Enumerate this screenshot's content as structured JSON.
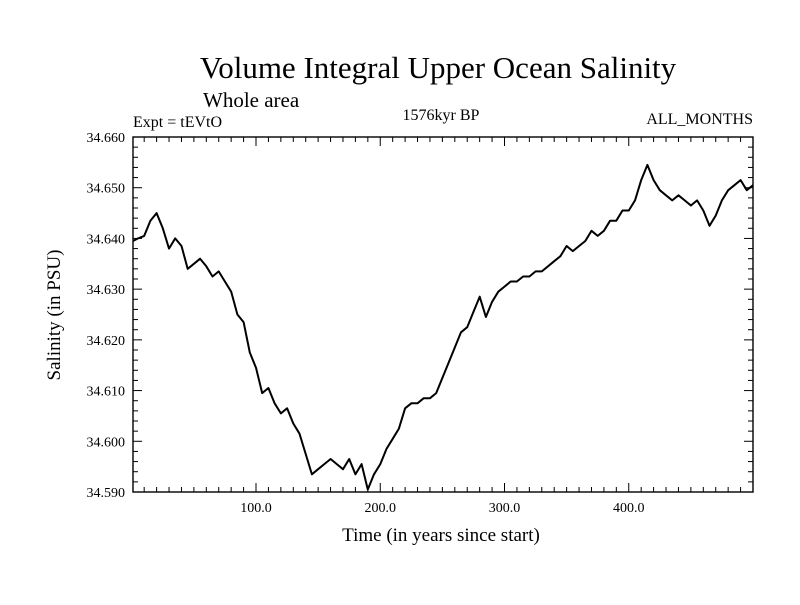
{
  "chart_data": {
    "type": "line",
    "title": "Volume Integral Upper Ocean Salinity",
    "subtitle": "Whole area",
    "header_left": "Expt = tEVtO",
    "header_center": "1576kyr BP",
    "header_right": "ALL_MONTHS",
    "xlabel": "Time (in years since start)",
    "ylabel": "Salinity (in PSU)",
    "xlim": [
      1,
      500
    ],
    "ylim": [
      34.59,
      34.66
    ],
    "x_ticks": [
      100,
      200,
      300,
      400
    ],
    "x_tick_labels": [
      "100.0",
      "200.0",
      "300.0",
      "400.0"
    ],
    "y_ticks": [
      34.59,
      34.6,
      34.61,
      34.62,
      34.63,
      34.64,
      34.65,
      34.66
    ],
    "y_tick_labels": [
      "34.590",
      "34.600",
      "34.610",
      "34.620",
      "34.630",
      "34.640",
      "34.650",
      "34.660"
    ],
    "grid": false,
    "line_color": "#000000",
    "series": [
      {
        "name": "Salinity",
        "x": [
          1,
          5,
          10,
          15,
          20,
          25,
          30,
          35,
          40,
          45,
          50,
          55,
          60,
          65,
          70,
          75,
          80,
          85,
          90,
          95,
          100,
          105,
          110,
          115,
          120,
          125,
          130,
          135,
          140,
          145,
          150,
          155,
          160,
          165,
          170,
          175,
          180,
          185,
          190,
          195,
          200,
          205,
          210,
          215,
          220,
          225,
          230,
          235,
          240,
          245,
          250,
          255,
          260,
          265,
          270,
          275,
          280,
          285,
          290,
          295,
          300,
          305,
          310,
          315,
          320,
          325,
          330,
          335,
          340,
          345,
          350,
          355,
          360,
          365,
          370,
          375,
          380,
          385,
          390,
          395,
          400,
          405,
          410,
          415,
          420,
          425,
          430,
          435,
          440,
          445,
          450,
          455,
          460,
          465,
          470,
          475,
          480,
          485,
          490,
          495,
          500
        ],
        "values": [
          34.6395,
          34.64,
          34.6405,
          34.6435,
          34.645,
          34.642,
          34.638,
          34.64,
          34.6385,
          34.634,
          34.635,
          34.636,
          34.6345,
          34.6325,
          34.6335,
          34.6315,
          34.6295,
          34.625,
          34.6235,
          34.6175,
          34.6145,
          34.6095,
          34.6105,
          34.6075,
          34.6055,
          34.6065,
          34.6035,
          34.6015,
          34.5975,
          34.5935,
          34.5945,
          34.5955,
          34.5965,
          34.5955,
          34.5945,
          34.5965,
          34.5935,
          34.5955,
          34.5905,
          34.5935,
          34.5955,
          34.5985,
          34.6005,
          34.6025,
          34.6065,
          34.6075,
          34.6075,
          34.6085,
          34.6085,
          34.6095,
          34.6125,
          34.6155,
          34.6185,
          34.6215,
          34.6225,
          34.6255,
          34.6285,
          34.6245,
          34.6275,
          34.6295,
          34.6305,
          34.6315,
          34.6315,
          34.6325,
          34.6325,
          34.6335,
          34.6335,
          34.6345,
          34.6355,
          34.6365,
          34.6385,
          34.6375,
          34.6385,
          34.6395,
          34.6415,
          34.6405,
          34.6415,
          34.6435,
          34.6435,
          34.6455,
          34.6455,
          34.6475,
          34.6515,
          34.6545,
          34.6515,
          34.6495,
          34.6485,
          34.6475,
          34.6485,
          34.6475,
          34.6465,
          34.6475,
          34.6455,
          34.6425,
          34.6445,
          34.6475,
          34.6495,
          34.6505,
          34.6515,
          34.6495,
          34.6505
        ]
      }
    ]
  }
}
